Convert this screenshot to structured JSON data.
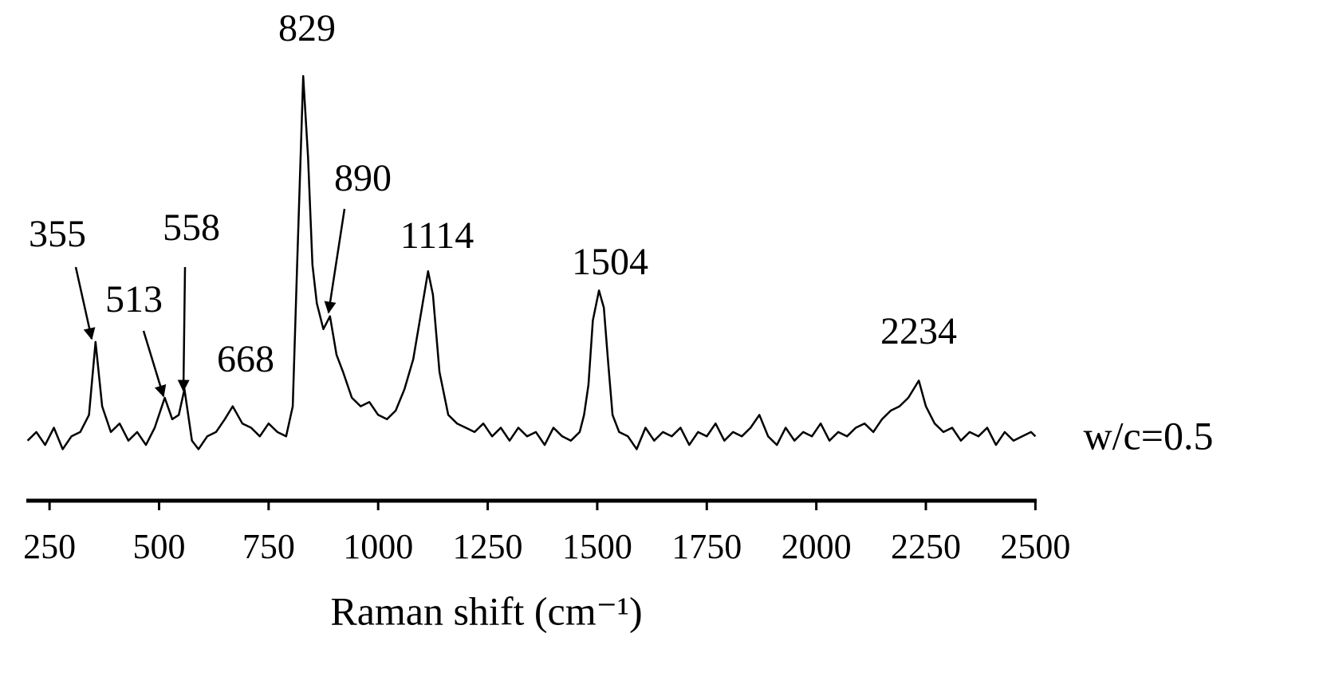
{
  "chart_data": {
    "type": "line",
    "x_label": "Raman shift (cm⁻¹)",
    "series_label": "w/c=0.5",
    "color": "#000000",
    "xlim": [
      197,
      2503
    ],
    "xticks": [
      250,
      500,
      750,
      1000,
      1250,
      1500,
      1750,
      2000,
      2250,
      2500
    ],
    "ylim": [
      0,
      100
    ],
    "peak_labels": [
      355,
      513,
      558,
      668,
      829,
      890,
      1114,
      1504,
      2234
    ],
    "x": [
      200,
      220,
      240,
      260,
      280,
      300,
      320,
      340,
      355,
      370,
      390,
      410,
      430,
      450,
      470,
      490,
      513,
      530,
      545,
      558,
      575,
      590,
      610,
      630,
      650,
      668,
      690,
      710,
      730,
      750,
      770,
      790,
      805,
      815,
      829,
      840,
      850,
      860,
      875,
      890,
      905,
      920,
      940,
      960,
      980,
      1000,
      1020,
      1040,
      1060,
      1080,
      1100,
      1114,
      1125,
      1140,
      1160,
      1180,
      1200,
      1220,
      1240,
      1260,
      1280,
      1300,
      1320,
      1340,
      1360,
      1380,
      1400,
      1420,
      1440,
      1460,
      1470,
      1480,
      1490,
      1504,
      1515,
      1525,
      1535,
      1550,
      1570,
      1590,
      1610,
      1630,
      1650,
      1670,
      1690,
      1710,
      1730,
      1750,
      1770,
      1790,
      1810,
      1830,
      1850,
      1870,
      1890,
      1910,
      1930,
      1950,
      1970,
      1990,
      2010,
      2030,
      2050,
      2070,
      2090,
      2110,
      2130,
      2150,
      2170,
      2190,
      2210,
      2234,
      2250,
      2270,
      2290,
      2310,
      2330,
      2350,
      2370,
      2390,
      2410,
      2430,
      2450,
      2470,
      2490,
      2500
    ],
    "values": [
      14,
      16,
      13,
      17,
      12,
      15,
      16,
      20,
      37,
      22,
      16,
      18,
      14,
      16,
      13,
      17,
      24,
      19,
      20,
      26,
      14,
      12,
      15,
      16,
      19,
      22,
      18,
      17,
      15,
      18,
      16,
      15,
      22,
      55,
      99,
      80,
      55,
      46,
      40,
      43,
      34,
      30,
      24,
      22,
      23,
      20,
      19,
      21,
      26,
      33,
      45,
      53.5,
      48,
      30,
      20,
      18,
      17,
      16,
      18,
      15,
      17,
      14,
      17,
      15,
      16,
      13,
      17,
      15,
      14,
      16,
      20,
      27,
      42,
      49,
      45,
      32,
      20,
      16,
      15,
      12,
      17,
      14,
      16,
      15,
      17,
      13,
      16,
      15,
      18,
      14,
      16,
      15,
      17,
      20,
      15,
      13,
      17,
      14,
      16,
      15,
      18,
      14,
      16,
      15,
      17,
      18,
      16,
      19,
      21,
      22,
      24,
      28,
      22,
      18,
      16,
      17,
      14,
      16,
      15,
      17,
      13,
      16,
      14,
      15,
      16,
      15
    ]
  }
}
